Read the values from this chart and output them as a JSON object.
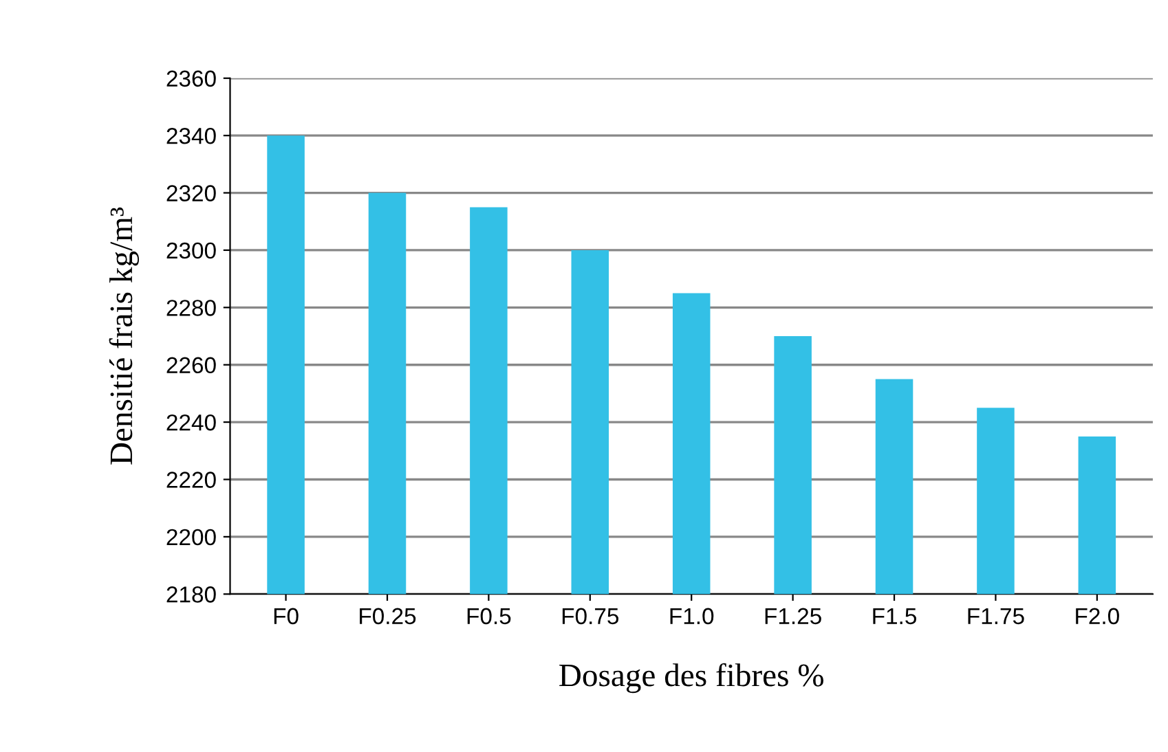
{
  "chart_data": {
    "type": "bar",
    "xlabel": "Dosage des fibres %",
    "ylabel": "Densitié frais kg/m³",
    "categories": [
      "F0",
      "F0.25",
      "F0.5",
      "F0.75",
      "F1.0",
      "F1.25",
      "F1.5",
      "F1.75",
      "F2.0"
    ],
    "values": [
      2340,
      2320,
      2315,
      2300,
      2285,
      2270,
      2255,
      2245,
      2235
    ],
    "color": "#33c0e6",
    "ylim": [
      2180,
      2360
    ],
    "yticks": [
      2180,
      2200,
      2220,
      2240,
      2260,
      2280,
      2300,
      2320,
      2340,
      2360
    ],
    "grid": "y"
  }
}
